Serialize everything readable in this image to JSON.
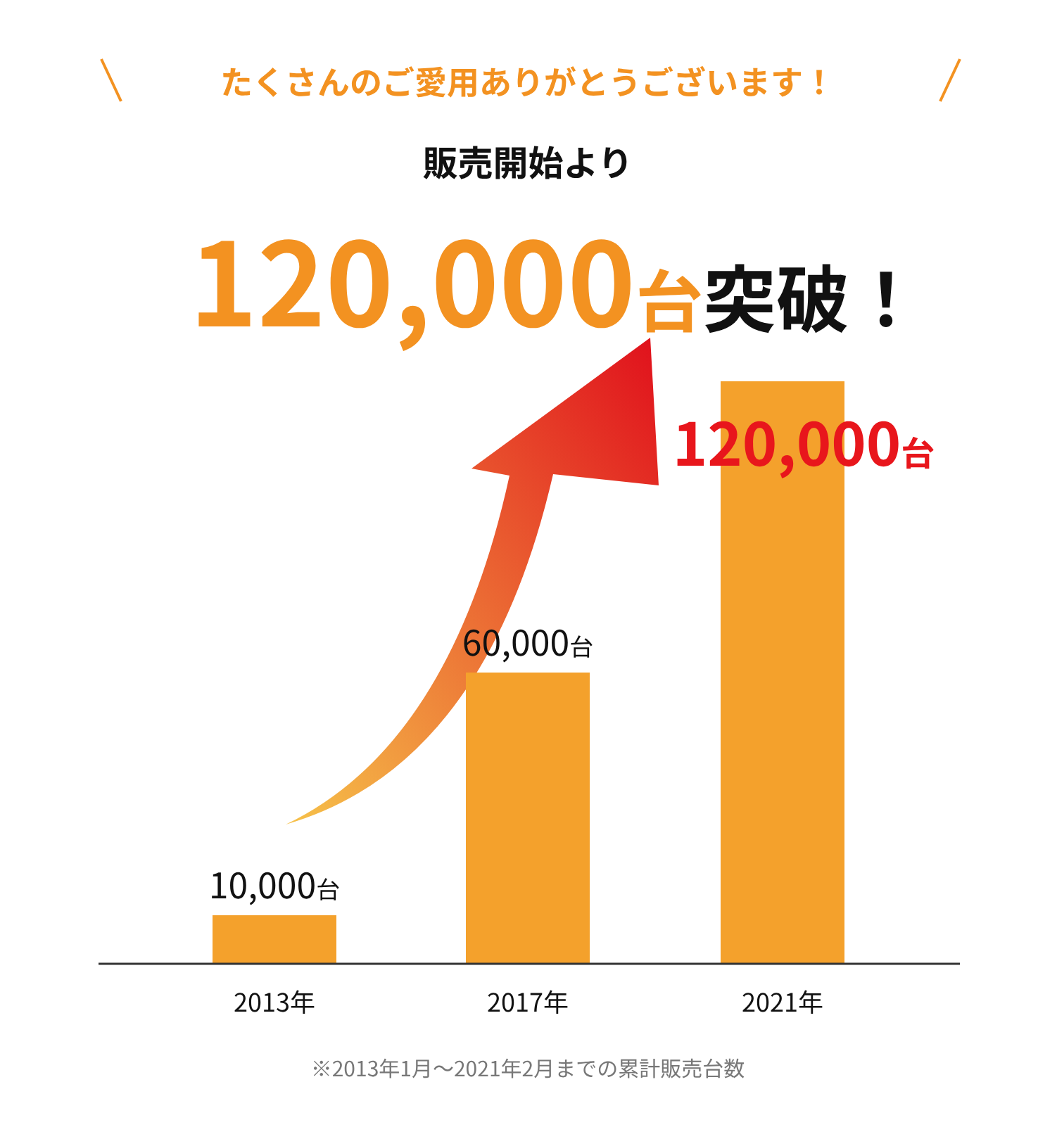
{
  "chart_data": {
    "type": "bar",
    "title": "たくさんのご愛用ありがとうございます！",
    "subtitle": "販売開始より",
    "categories": [
      "2013年",
      "2017年",
      "2021年"
    ],
    "values": [
      10000,
      60000,
      120000
    ],
    "value_labels": [
      "10,000台",
      "60,000台",
      "120,000台"
    ],
    "color": "#f4a12c",
    "annotations": [
      "120,000台突破！",
      "※2013年1月～2021年2月までの累計販売台数"
    ]
  }
}
